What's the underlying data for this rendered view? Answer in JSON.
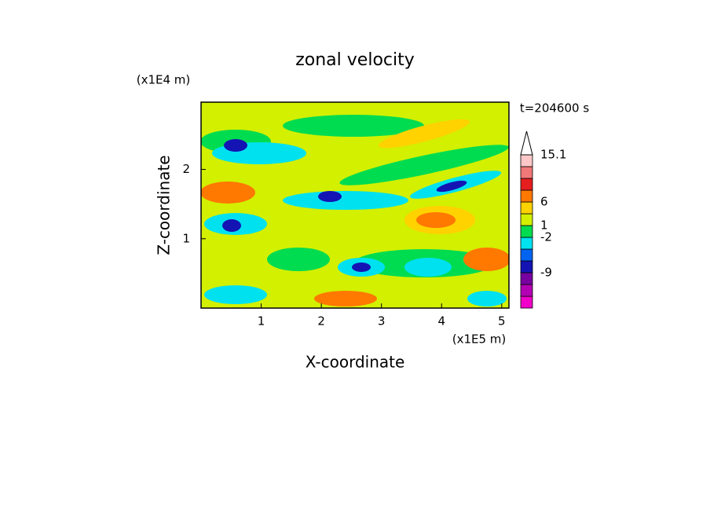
{
  "chart_data": {
    "type": "contour",
    "title": "zonal velocity",
    "x_label": "X-coordinate",
    "y_label": "Z-coordinate",
    "x_unit": "(x1E5 m)",
    "y_unit": "(x1E4 m)",
    "time_label": "t=204600 s",
    "xlim": [
      0,
      5.12
    ],
    "ylim": [
      0,
      2.97
    ],
    "xticks": [
      1,
      2,
      3,
      4,
      5
    ],
    "yticks": [
      1,
      2
    ],
    "colorbar": {
      "colors": [
        "#f000c8",
        "#b400b4",
        "#7800a0",
        "#1414b4",
        "#0064f0",
        "#00e1f0",
        "#00dc50",
        "#d2f000",
        "#ffd200",
        "#ff7800",
        "#e61e1e",
        "#f07878",
        "#ffc8c8"
      ],
      "labels": [
        null,
        null,
        null,
        -9,
        null,
        null,
        -2,
        1,
        null,
        6,
        null,
        null,
        null,
        15.1
      ]
    }
  }
}
